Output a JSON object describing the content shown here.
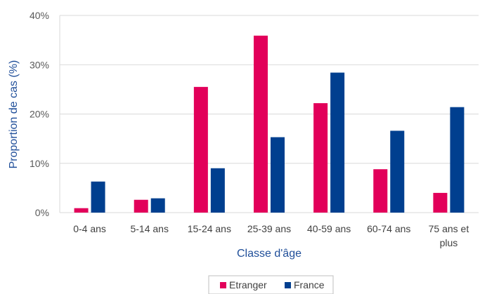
{
  "chart_data": {
    "type": "bar",
    "xlabel": "Classe d'âge",
    "ylabel": "Proportion de cas (%)",
    "ylim": [
      0,
      40
    ],
    "yticks": [
      "0%",
      "10%",
      "20%",
      "30%",
      "40%"
    ],
    "categories": [
      [
        "0-4 ans"
      ],
      [
        "5-14 ans"
      ],
      [
        "15-24 ans"
      ],
      [
        "25-39 ans"
      ],
      [
        "40-59 ans"
      ],
      [
        "60-74 ans"
      ],
      [
        "75 ans et",
        "plus"
      ]
    ],
    "series": [
      {
        "name": "Etranger",
        "color": "#e2005a",
        "values": [
          0.9,
          2.6,
          25.5,
          35.9,
          22.2,
          8.8,
          4.0
        ]
      },
      {
        "name": "France",
        "color": "#003f8f",
        "values": [
          6.3,
          2.9,
          9.0,
          15.3,
          28.4,
          16.6,
          21.4
        ]
      }
    ],
    "grid": "horizontal",
    "legend_position": "bottom"
  }
}
